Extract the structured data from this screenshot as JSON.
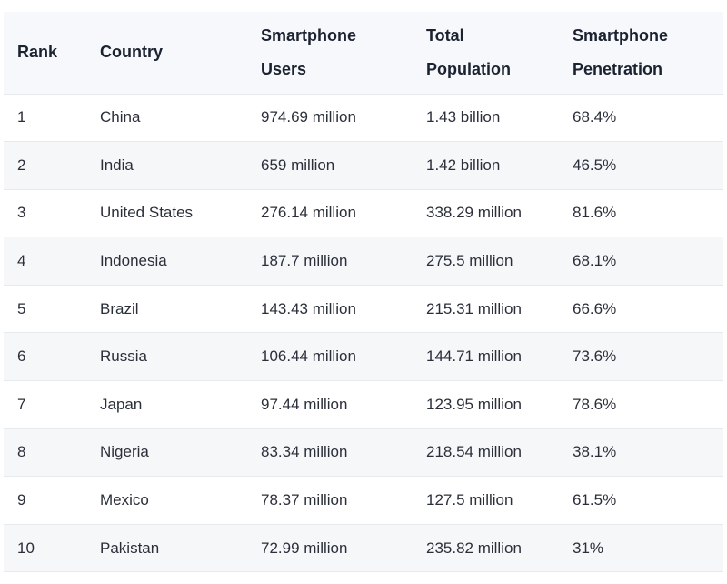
{
  "table": {
    "headers": {
      "rank": "Rank",
      "country": "Country",
      "users_line1": "Smartphone",
      "users_line2": "Users",
      "population_line1": "Total",
      "population_line2": "Population",
      "penetration_line1": "Smartphone",
      "penetration_line2": "Penetration"
    },
    "rows": [
      {
        "rank": "1",
        "country": "China",
        "users": "974.69 million",
        "population": "1.43 billion",
        "penetration": "68.4%"
      },
      {
        "rank": "2",
        "country": "India",
        "users": "659 million",
        "population": "1.42 billion",
        "penetration": "46.5%"
      },
      {
        "rank": "3",
        "country": "United States",
        "users": "276.14 million",
        "population": "338.29 million",
        "penetration": "81.6%"
      },
      {
        "rank": "4",
        "country": "Indonesia",
        "users": "187.7 million",
        "population": "275.5 million",
        "penetration": "68.1%"
      },
      {
        "rank": "5",
        "country": "Brazil",
        "users": "143.43 million",
        "population": "215.31 million",
        "penetration": "66.6%"
      },
      {
        "rank": "6",
        "country": "Russia",
        "users": "106.44 million",
        "population": "144.71 million",
        "penetration": "73.6%"
      },
      {
        "rank": "7",
        "country": "Japan",
        "users": "97.44 million",
        "population": "123.95 million",
        "penetration": "78.6%"
      },
      {
        "rank": "8",
        "country": "Nigeria",
        "users": "83.34 million",
        "population": "218.54 million",
        "penetration": "38.1%"
      },
      {
        "rank": "9",
        "country": "Mexico",
        "users": "78.37 million",
        "population": "127.5 million",
        "penetration": "61.5%"
      },
      {
        "rank": "10",
        "country": "Pakistan",
        "users": "72.99 million",
        "population": "235.82 million",
        "penetration": "31%"
      }
    ]
  }
}
